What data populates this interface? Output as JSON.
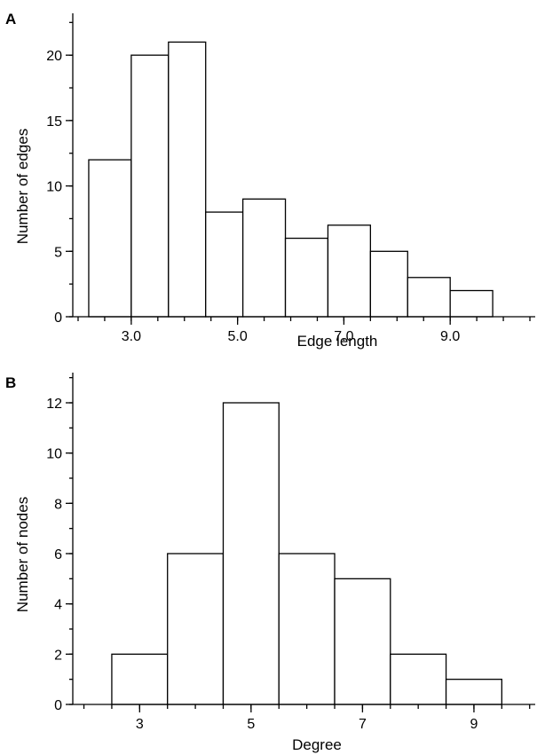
{
  "chart_data": [
    {
      "type": "bar",
      "panel_label": "A",
      "xlabel": "Edge length",
      "ylabel": "Number of edges",
      "bins": [
        {
          "from": 2.2,
          "to": 3.0,
          "value": 12
        },
        {
          "from": 3.0,
          "to": 3.7,
          "value": 20
        },
        {
          "from": 3.7,
          "to": 4.4,
          "value": 21
        },
        {
          "from": 4.4,
          "to": 5.1,
          "value": 8
        },
        {
          "from": 5.1,
          "to": 5.9,
          "value": 9
        },
        {
          "from": 5.9,
          "to": 6.7,
          "value": 6
        },
        {
          "from": 6.7,
          "to": 7.5,
          "value": 7
        },
        {
          "from": 7.5,
          "to": 8.2,
          "value": 5
        },
        {
          "from": 8.2,
          "to": 9.0,
          "value": 3
        },
        {
          "from": 9.0,
          "to": 9.8,
          "value": 2
        }
      ],
      "xticks": [
        "3.0",
        "5.0",
        "7.0",
        "9.0"
      ],
      "xtick_values": [
        3.0,
        5.0,
        7.0,
        9.0
      ],
      "yticks": [
        "0",
        "5",
        "10",
        "15",
        "20"
      ],
      "ytick_values": [
        0,
        5,
        10,
        15,
        20
      ],
      "xlim": [
        1.9,
        10.6
      ],
      "ylim": [
        0,
        23.2
      ],
      "minor_y_step": 2.5,
      "grid": false
    },
    {
      "type": "bar",
      "panel_label": "B",
      "xlabel": "Degree",
      "ylabel": "Number of nodes",
      "bins": [
        {
          "from": 2.5,
          "to": 3.5,
          "value": 2
        },
        {
          "from": 3.5,
          "to": 4.5,
          "value": 6
        },
        {
          "from": 4.5,
          "to": 5.5,
          "value": 12
        },
        {
          "from": 5.5,
          "to": 6.5,
          "value": 6
        },
        {
          "from": 6.5,
          "to": 7.5,
          "value": 5
        },
        {
          "from": 7.5,
          "to": 8.5,
          "value": 2
        },
        {
          "from": 8.5,
          "to": 9.5,
          "value": 1
        }
      ],
      "xticks": [
        "3",
        "5",
        "7",
        "9"
      ],
      "xtick_values": [
        3,
        5,
        7,
        9
      ],
      "yticks": [
        "0",
        "2",
        "4",
        "6",
        "8",
        "10",
        "12"
      ],
      "ytick_values": [
        0,
        2,
        4,
        6,
        8,
        10,
        12
      ],
      "xlim": [
        1.8,
        10.1
      ],
      "ylim": [
        0,
        13.2
      ],
      "minor_y_step": 1,
      "grid": false
    }
  ]
}
